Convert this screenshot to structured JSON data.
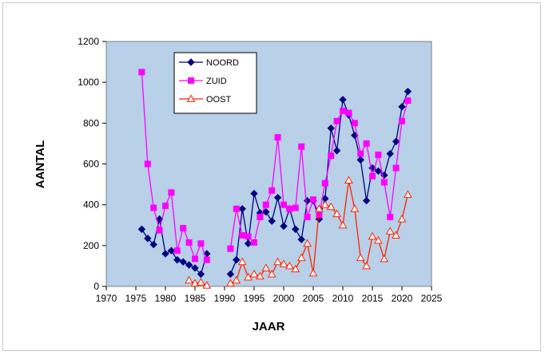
{
  "chart_data": {
    "type": "line",
    "xlabel": "JAAR",
    "ylabel": "AANTAL",
    "xlim": [
      1970,
      2025
    ],
    "ylim": [
      0,
      1200
    ],
    "xticks": [
      1970,
      1975,
      1980,
      1985,
      1990,
      1995,
      2000,
      2005,
      2010,
      2015,
      2020,
      2025
    ],
    "yticks": [
      0,
      200,
      400,
      600,
      800,
      1000,
      1200
    ],
    "grid": false,
    "legend": "top-left",
    "background": "#b8d0e8",
    "series": [
      {
        "name": "NOORD",
        "color": "#000080",
        "marker": "diamond",
        "segments": [
          [
            [
              1976,
              280
            ],
            [
              1977,
              235
            ],
            [
              1978,
              205
            ],
            [
              1979,
              330
            ],
            [
              1980,
              160
            ],
            [
              1981,
              175
            ],
            [
              1982,
              130
            ],
            [
              1983,
              120
            ],
            [
              1984,
              105
            ],
            [
              1985,
              90
            ],
            [
              1986,
              60
            ],
            [
              1987,
              160
            ]
          ],
          [
            [
              1991,
              60
            ],
            [
              1992,
              130
            ],
            [
              1993,
              380
            ],
            [
              1994,
              210
            ],
            [
              1995,
              455
            ],
            [
              1996,
              360
            ],
            [
              1997,
              365
            ],
            [
              1998,
              320
            ],
            [
              1999,
              435
            ],
            [
              2000,
              295
            ],
            [
              2001,
              380
            ],
            [
              2002,
              280
            ],
            [
              2003,
              230
            ],
            [
              2004,
              420
            ],
            [
              2005,
              420
            ],
            [
              2006,
              330
            ],
            [
              2007,
              430
            ],
            [
              2008,
              775
            ],
            [
              2009,
              665
            ],
            [
              2010,
              915
            ],
            [
              2011,
              840
            ],
            [
              2012,
              740
            ],
            [
              2013,
              620
            ],
            [
              2014,
              420
            ],
            [
              2015,
              580
            ],
            [
              2016,
              565
            ],
            [
              2017,
              545
            ],
            [
              2018,
              650
            ],
            [
              2019,
              710
            ],
            [
              2020,
              880
            ],
            [
              2021,
              955
            ]
          ]
        ]
      },
      {
        "name": "ZUID",
        "color": "#ff00ff",
        "marker": "square",
        "segments": [
          [
            [
              1976,
              1050
            ],
            [
              1977,
              600
            ],
            [
              1978,
              385
            ],
            [
              1979,
              275
            ],
            [
              1980,
              395
            ],
            [
              1981,
              460
            ],
            [
              1982,
              175
            ],
            [
              1983,
              285
            ],
            [
              1984,
              215
            ],
            [
              1985,
              135
            ],
            [
              1986,
              210
            ],
            [
              1987,
              130
            ]
          ],
          [
            [
              1991,
              185
            ],
            [
              1992,
              380
            ],
            [
              1993,
              250
            ],
            [
              1994,
              245
            ],
            [
              1995,
              215
            ],
            [
              1996,
              340
            ],
            [
              1997,
              400
            ],
            [
              1998,
              470
            ],
            [
              1999,
              730
            ],
            [
              2000,
              400
            ],
            [
              2001,
              380
            ],
            [
              2002,
              385
            ],
            [
              2003,
              685
            ],
            [
              2004,
              340
            ],
            [
              2005,
              425
            ],
            [
              2006,
              350
            ],
            [
              2007,
              505
            ],
            [
              2008,
              640
            ],
            [
              2009,
              810
            ],
            [
              2010,
              860
            ],
            [
              2011,
              850
            ],
            [
              2012,
              800
            ],
            [
              2013,
              650
            ],
            [
              2014,
              700
            ],
            [
              2015,
              540
            ],
            [
              2016,
              645
            ],
            [
              2017,
              510
            ],
            [
              2018,
              340
            ],
            [
              2019,
              580
            ],
            [
              2020,
              810
            ],
            [
              2021,
              910
            ]
          ]
        ]
      },
      {
        "name": "OOST",
        "color": "#ff2200",
        "marker": "triangle",
        "segments": [
          [
            [
              1984,
              30
            ],
            [
              1985,
              15
            ],
            [
              1986,
              20
            ],
            [
              1987,
              5
            ]
          ],
          [
            [
              1991,
              15
            ],
            [
              1992,
              30
            ],
            [
              1993,
              120
            ],
            [
              1994,
              45
            ],
            [
              1995,
              60
            ],
            [
              1996,
              50
            ],
            [
              1997,
              90
            ],
            [
              1998,
              60
            ],
            [
              1999,
              120
            ],
            [
              2000,
              110
            ],
            [
              2001,
              100
            ],
            [
              2002,
              85
            ],
            [
              2003,
              140
            ],
            [
              2004,
              210
            ],
            [
              2005,
              65
            ],
            [
              2006,
              380
            ],
            [
              2007,
              400
            ],
            [
              2008,
              390
            ],
            [
              2009,
              355
            ],
            [
              2010,
              300
            ],
            [
              2011,
              520
            ],
            [
              2012,
              380
            ],
            [
              2013,
              140
            ],
            [
              2014,
              100
            ],
            [
              2015,
              245
            ],
            [
              2016,
              225
            ],
            [
              2017,
              135
            ],
            [
              2018,
              270
            ],
            [
              2019,
              250
            ],
            [
              2020,
              330
            ],
            [
              2021,
              450
            ]
          ]
        ]
      }
    ]
  }
}
